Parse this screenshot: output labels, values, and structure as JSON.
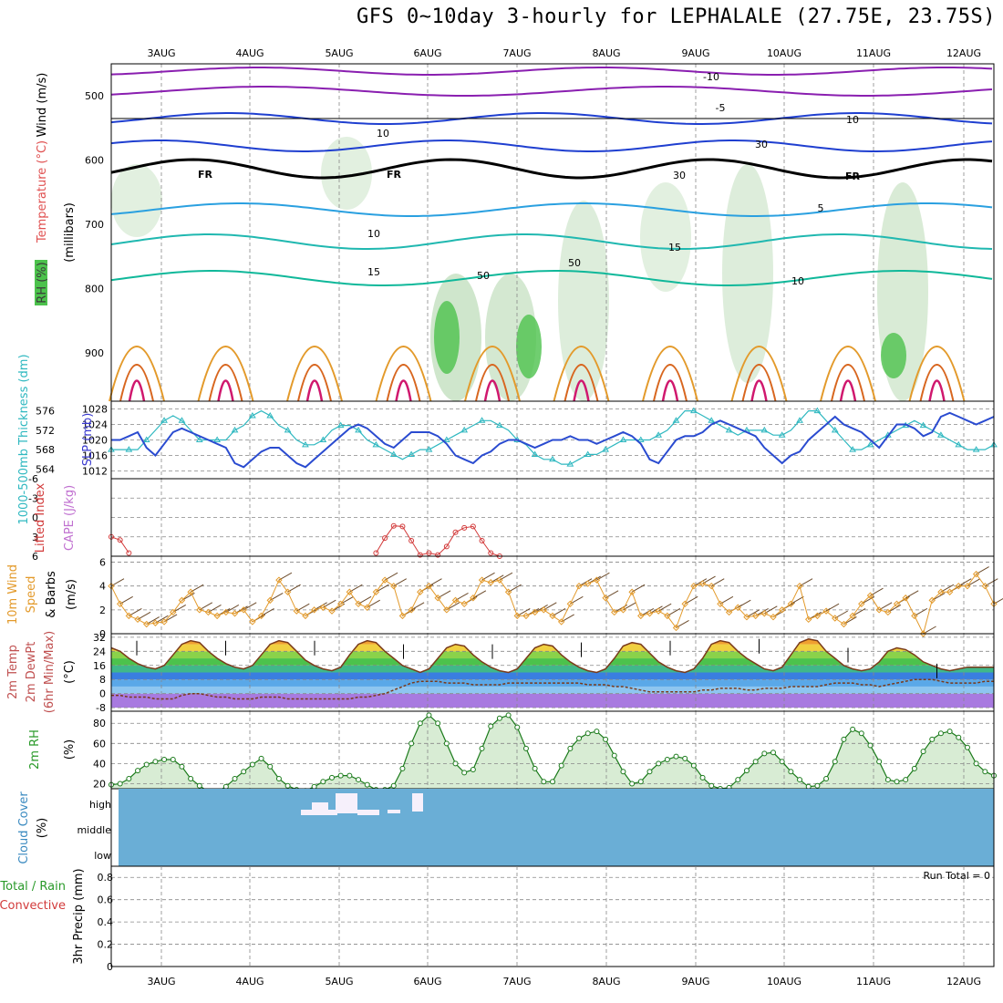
{
  "title": "GFS 0~10day 3-hourly for LEPHALALE (27.75E, 23.75S)",
  "colors": {
    "temp_line": "#2a4bd0",
    "thickness": "#2fb8c0",
    "lifted": "#d23a3a",
    "wind10": "#e39a2b",
    "barb": "#6b4a2a",
    "rh_green": "#4cc24c",
    "cloud_bg": "#6aaed6",
    "cloud_high": "#f6f0fb"
  },
  "chart_data": {
    "type": "line",
    "x_date_labels": [
      "3AUG",
      "4AUG",
      "5AUG",
      "6AUG",
      "7AUG",
      "8AUG",
      "9AUG",
      "10AUG",
      "11AUG",
      "12AUG"
    ],
    "panels": {
      "upper_air": {
        "ylabel": "(millibars)",
        "side_labels": [
          "Wind (m/s)",
          "Temperature (°C)",
          "RH (%)"
        ],
        "pressure_ticks": [
          500,
          600,
          700,
          800,
          900
        ],
        "ylim": [
          450,
          975
        ],
        "freezing_label": "FR",
        "contour_labels": [
          "-10",
          "-5",
          "10",
          "5",
          "10",
          "15",
          "15",
          "10",
          "30",
          "30",
          "50",
          "10",
          "50"
        ]
      },
      "slp_thickness": {
        "ylabel_left": "1000-500mb Thickness (dm)",
        "ylabel_right": "SLP (mb)",
        "thickness_ticks": [
          564,
          568,
          572,
          576
        ],
        "slp_ticks": [
          1012,
          1016,
          1020,
          1024,
          1028
        ],
        "slp_series": [
          1020,
          1020,
          1021,
          1022,
          1018,
          1016,
          1019,
          1022,
          1023,
          1022,
          1021,
          1020,
          1019,
          1018,
          1014,
          1013,
          1015,
          1017,
          1018,
          1018,
          1016,
          1014,
          1013,
          1015,
          1017,
          1019,
          1021,
          1023,
          1024,
          1023,
          1021,
          1019,
          1018,
          1020,
          1022,
          1022,
          1022,
          1021,
          1019,
          1016,
          1015,
          1014,
          1016,
          1017,
          1019,
          1020,
          1020,
          1019,
          1018,
          1019,
          1020,
          1020,
          1021,
          1020,
          1020,
          1019,
          1020,
          1021,
          1022,
          1021,
          1019,
          1015,
          1014,
          1017,
          1020,
          1021,
          1021,
          1022,
          1024,
          1025,
          1024,
          1023,
          1022,
          1021,
          1018,
          1016,
          1014,
          1016,
          1017,
          1020,
          1022,
          1024,
          1026,
          1024,
          1023,
          1022,
          1020,
          1018,
          1021,
          1024,
          1024,
          1023,
          1021,
          1022,
          1026,
          1027,
          1026,
          1025,
          1024,
          1025,
          1026
        ],
        "thickness_series": [
          568,
          568,
          568,
          568,
          570,
          572,
          574,
          575,
          574,
          572,
          570,
          570,
          570,
          570,
          572,
          573,
          575,
          576,
          575,
          573,
          572,
          570,
          569,
          569,
          570,
          572,
          573,
          573,
          572,
          570,
          569,
          568,
          567,
          566,
          567,
          568,
          568,
          569,
          570,
          571,
          572,
          573,
          574,
          574,
          573,
          572,
          570,
          569,
          567,
          566,
          566,
          565,
          565,
          566,
          567,
          567,
          568,
          569,
          570,
          570,
          570,
          570,
          571,
          572,
          574,
          576,
          576,
          575,
          574,
          573,
          572,
          571,
          572,
          572,
          572,
          571,
          571,
          572,
          574,
          576,
          576,
          574,
          572,
          570,
          568,
          568,
          569,
          570,
          571,
          572,
          573,
          574,
          573,
          572,
          571,
          570,
          569,
          568,
          568,
          568,
          569
        ]
      },
      "stability": {
        "ylabel_left": "Lifted Index",
        "ylabel_right": "CAPE (J/kg)",
        "li_ticks": [
          -6,
          -3,
          0,
          3,
          6
        ],
        "li_series": [
          3.0,
          3.5,
          5.5,
          null,
          null,
          null,
          null,
          null,
          null,
          null,
          null,
          null,
          null,
          null,
          null,
          null,
          null,
          null,
          null,
          null,
          null,
          null,
          null,
          null,
          null,
          null,
          null,
          null,
          null,
          null,
          5.5,
          3.2,
          1.3,
          1.4,
          3.6,
          5.8,
          5.5,
          5.8,
          4.5,
          2.3,
          1.6,
          1.4,
          3.6,
          5.5,
          6.0,
          null,
          null,
          null,
          null,
          null,
          null,
          null,
          null,
          null,
          null,
          null,
          null,
          null,
          null,
          null,
          null,
          null,
          null,
          null,
          null,
          null,
          null,
          null,
          null,
          null,
          null,
          null,
          null,
          null,
          null,
          null,
          null,
          null,
          null,
          null,
          null,
          null,
          null,
          null,
          null,
          null,
          null,
          null,
          null,
          null,
          null,
          null,
          null,
          null,
          null,
          null,
          null,
          null,
          null,
          null,
          null
        ]
      },
      "wind10m": {
        "ylabel": "10m Wind Speed & Barbs (m/s)",
        "yticks": [
          0,
          2,
          4,
          6
        ],
        "ylim": [
          0,
          6.5
        ],
        "series": [
          4.0,
          2.5,
          1.5,
          1.2,
          0.8,
          0.9,
          1.0,
          1.8,
          2.8,
          3.5,
          2.0,
          1.8,
          1.5,
          1.8,
          1.7,
          2.0,
          1.0,
          1.5,
          2.8,
          4.5,
          3.5,
          1.9,
          1.5,
          2.0,
          2.2,
          1.9,
          2.5,
          3.5,
          2.5,
          2.2,
          3.5,
          4.5,
          4.0,
          1.5,
          2.0,
          3.5,
          4.0,
          3.0,
          2.0,
          2.8,
          2.5,
          3.0,
          4.5,
          4.3,
          4.5,
          3.5,
          1.5,
          1.5,
          1.8,
          2.0,
          1.5,
          1.0,
          2.5,
          4.0,
          4.2,
          4.5,
          3.0,
          1.8,
          2.0,
          3.5,
          1.5,
          1.7,
          1.9,
          1.5,
          0.5,
          2.5,
          4.0,
          4.2,
          4.0,
          2.5,
          1.8,
          2.2,
          1.4,
          1.5,
          1.7,
          1.4,
          2.0,
          2.5,
          4.0,
          1.2,
          1.5,
          1.9,
          1.3,
          0.8,
          1.5,
          2.5,
          3.2,
          2.0,
          1.8,
          2.5,
          3.0,
          1.5,
          0.0,
          2.8,
          3.5,
          3.5,
          4.0,
          4.0,
          5.0,
          4.0,
          2.5
        ]
      },
      "temp2m": {
        "ylabel": "2m Temp 2m DewPt (6hr Min/Max) (°C)",
        "yticks": [
          -8,
          0,
          8,
          16,
          24,
          32
        ],
        "temp_series": [
          26,
          24,
          20,
          17,
          15,
          14,
          16,
          22,
          28,
          30,
          29,
          24,
          20,
          17,
          15,
          14,
          16,
          22,
          28,
          30,
          29,
          24,
          19,
          16,
          14,
          13,
          15,
          22,
          28,
          30,
          29,
          24,
          20,
          16,
          14,
          12,
          14,
          20,
          26,
          28,
          27,
          22,
          18,
          15,
          13,
          12,
          14,
          20,
          26,
          28,
          27,
          22,
          18,
          15,
          13,
          12,
          14,
          20,
          27,
          29,
          28,
          23,
          18,
          15,
          13,
          12,
          14,
          20,
          28,
          30,
          29,
          24,
          20,
          17,
          14,
          13,
          15,
          22,
          29,
          31,
          30,
          24,
          20,
          16,
          14,
          13,
          14,
          18,
          24,
          26,
          25,
          22,
          18,
          16,
          14,
          13,
          14,
          15,
          15,
          15,
          15
        ],
        "dewpt_series": [
          -1,
          -1,
          -2,
          -2,
          -2,
          -3,
          -3,
          -3,
          -1,
          0,
          0,
          -1,
          -2,
          -2,
          -3,
          -3,
          -3,
          -2,
          -2,
          -2,
          -3,
          -3,
          -3,
          -3,
          -3,
          -3,
          -3,
          -3,
          -2,
          -2,
          -1,
          0,
          2,
          4,
          6,
          7,
          7,
          7,
          6,
          6,
          6,
          5,
          5,
          5,
          5,
          6,
          6,
          6,
          6,
          6,
          6,
          6,
          6,
          6,
          5,
          5,
          5,
          4,
          4,
          3,
          2,
          1,
          1,
          1,
          1,
          1,
          1,
          2,
          2,
          3,
          3,
          3,
          2,
          2,
          3,
          3,
          3,
          4,
          4,
          4,
          4,
          5,
          6,
          6,
          6,
          5,
          5,
          4,
          5,
          6,
          7,
          8,
          8,
          8,
          7,
          6,
          6,
          6,
          6,
          7,
          7
        ]
      },
      "rh2m": {
        "ylabel": "2m RH (%)",
        "yticks": [
          20,
          40,
          60,
          80
        ],
        "ylim": [
          15,
          92
        ],
        "series": [
          19,
          20,
          25,
          33,
          39,
          42,
          44,
          44,
          37,
          25,
          18,
          12,
          12,
          17,
          25,
          32,
          39,
          45,
          37,
          25,
          18,
          14,
          13,
          17,
          22,
          26,
          28,
          28,
          24,
          19,
          14,
          14,
          18,
          35,
          60,
          80,
          88,
          80,
          60,
          40,
          31,
          34,
          55,
          77,
          85,
          88,
          76,
          55,
          35,
          22,
          22,
          38,
          55,
          65,
          70,
          72,
          64,
          48,
          32,
          20,
          22,
          32,
          40,
          44,
          47,
          45,
          38,
          26,
          18,
          15,
          16,
          24,
          33,
          42,
          50,
          51,
          42,
          32,
          24,
          17,
          18,
          25,
          42,
          64,
          74,
          70,
          58,
          42,
          24,
          22,
          24,
          35,
          52,
          64,
          70,
          72,
          66,
          56,
          40,
          32,
          28
        ]
      },
      "cloud_cover": {
        "ylabel": "Cloud Cover (%)",
        "levels": [
          "high",
          "middle",
          "low"
        ]
      },
      "precip": {
        "ylabel": "3hr Precip (mm)",
        "legend_left": [
          "Total / Rain",
          "Convective"
        ],
        "yticks": [
          "0",
          "0.2",
          "0.4",
          "0.6",
          "0.8"
        ],
        "ylim": [
          0,
          0.9
        ],
        "run_total_label": "Run Total = 0"
      }
    }
  }
}
